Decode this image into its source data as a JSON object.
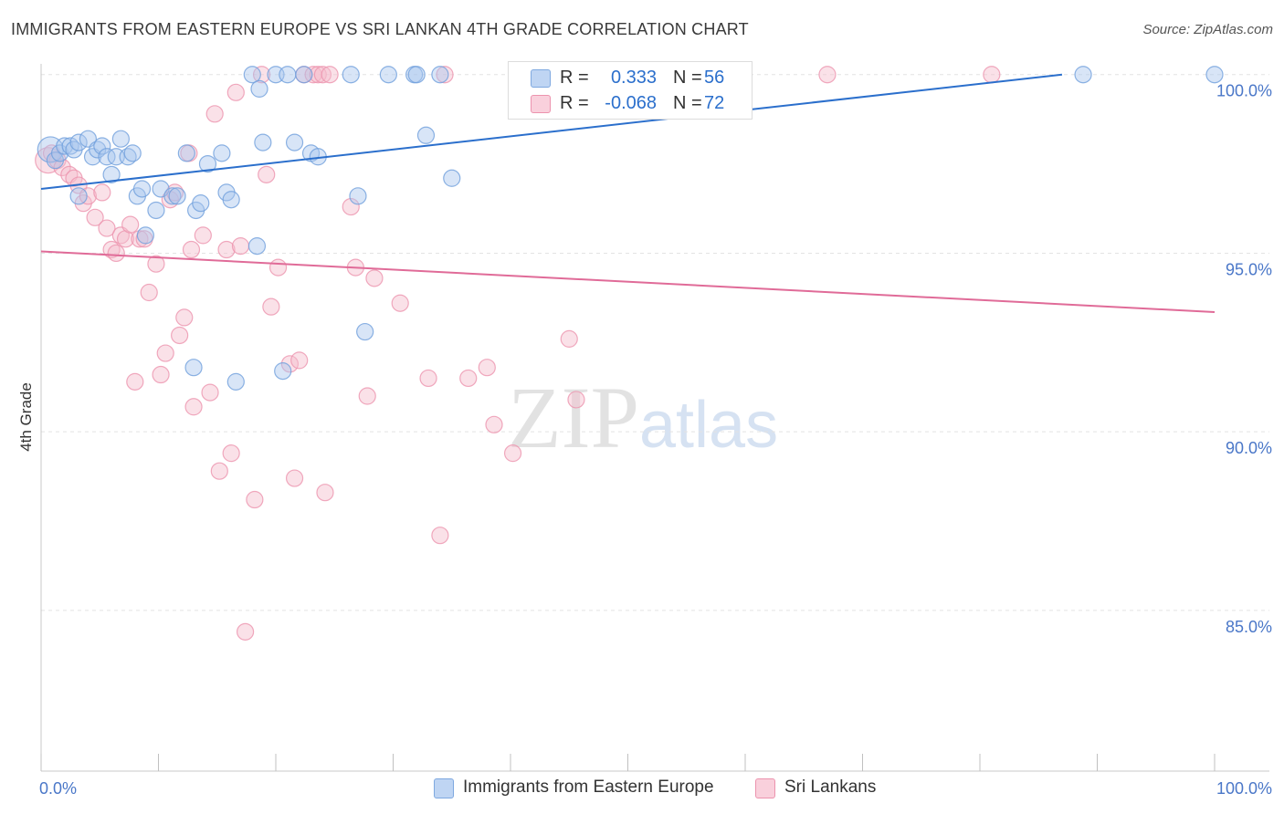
{
  "title": "IMMIGRANTS FROM EASTERN EUROPE VS SRI LANKAN 4TH GRADE CORRELATION CHART",
  "source": "Source: ZipAtlas.com",
  "watermark": {
    "zip": "ZIP",
    "atlas": "atlas"
  },
  "legend_top": {
    "rows": [
      {
        "r_label": "R =",
        "r_value": "0.333",
        "n_label": "N =",
        "n_value": "56",
        "color": "#a9c6ee"
      },
      {
        "r_label": "R =",
        "r_value": "-0.068",
        "n_label": "N =",
        "n_value": "72",
        "color": "#f5bccd"
      }
    ]
  },
  "legend_bottom": [
    {
      "label": "Immigrants from Eastern Europe",
      "color": "#a9c6ee"
    },
    {
      "label": "Sri Lankans",
      "color": "#f5bccd"
    }
  ],
  "colors": {
    "blue_fill": "#a9c6ee",
    "blue_stroke": "#6f9fdc",
    "blue_line": "#2b6fcc",
    "pink_fill": "#f5bccd",
    "pink_stroke": "#ec93ae",
    "pink_line": "#e06b98",
    "tick_label": "#4a77c8",
    "grid": "#e3e3e3"
  },
  "chart_data": {
    "type": "scatter",
    "title": "IMMIGRANTS FROM EASTERN EUROPE VS SRI LANKAN 4TH GRADE CORRELATION CHART",
    "xlabel": "",
    "ylabel": "4th Grade",
    "xlim": [
      0,
      100
    ],
    "ylim": [
      80.5,
      100.3
    ],
    "x_tick_labels": [
      "0.0%",
      "100.0%"
    ],
    "y_ticks": [
      85,
      90,
      95,
      100
    ],
    "y_tick_labels": [
      "85.0%",
      "90.0%",
      "95.0%",
      "100.0%"
    ],
    "grid": true,
    "legend_placement": "bottom",
    "series": [
      {
        "name": "Immigrants from Eastern Europe",
        "r": 0.333,
        "n": 56,
        "trend": {
          "x": [
            0,
            87
          ],
          "y": [
            96.8,
            100.0
          ]
        },
        "points": [
          {
            "x": 0.8,
            "y": 97.9,
            "big": true
          },
          {
            "x": 1.2,
            "y": 97.6
          },
          {
            "x": 1.6,
            "y": 97.8
          },
          {
            "x": 2.0,
            "y": 98.0
          },
          {
            "x": 2.5,
            "y": 98.0
          },
          {
            "x": 2.8,
            "y": 97.9
          },
          {
            "x": 3.2,
            "y": 98.1
          },
          {
            "x": 3.2,
            "y": 96.6
          },
          {
            "x": 4.0,
            "y": 98.2
          },
          {
            "x": 4.4,
            "y": 97.7
          },
          {
            "x": 4.8,
            "y": 97.9
          },
          {
            "x": 5.2,
            "y": 98.0
          },
          {
            "x": 5.6,
            "y": 97.7
          },
          {
            "x": 6.0,
            "y": 97.2
          },
          {
            "x": 6.4,
            "y": 97.7
          },
          {
            "x": 6.8,
            "y": 98.2
          },
          {
            "x": 7.4,
            "y": 97.7
          },
          {
            "x": 7.8,
            "y": 97.8
          },
          {
            "x": 8.2,
            "y": 96.6
          },
          {
            "x": 8.6,
            "y": 96.8
          },
          {
            "x": 8.9,
            "y": 95.5
          },
          {
            "x": 9.8,
            "y": 96.2
          },
          {
            "x": 10.2,
            "y": 96.8
          },
          {
            "x": 11.2,
            "y": 96.6
          },
          {
            "x": 11.6,
            "y": 96.6
          },
          {
            "x": 12.4,
            "y": 97.8
          },
          {
            "x": 13.0,
            "y": 91.8
          },
          {
            "x": 13.2,
            "y": 96.2
          },
          {
            "x": 13.6,
            "y": 96.4
          },
          {
            "x": 14.2,
            "y": 97.5
          },
          {
            "x": 15.4,
            "y": 97.8
          },
          {
            "x": 15.8,
            "y": 96.7
          },
          {
            "x": 16.2,
            "y": 96.5
          },
          {
            "x": 16.6,
            "y": 91.4
          },
          {
            "x": 18.0,
            "y": 100.0
          },
          {
            "x": 18.4,
            "y": 95.2
          },
          {
            "x": 18.6,
            "y": 99.6
          },
          {
            "x": 18.9,
            "y": 98.1
          },
          {
            "x": 20.0,
            "y": 100.0
          },
          {
            "x": 20.6,
            "y": 91.7
          },
          {
            "x": 21.0,
            "y": 100.0
          },
          {
            "x": 21.6,
            "y": 98.1
          },
          {
            "x": 22.4,
            "y": 100.0
          },
          {
            "x": 23.0,
            "y": 97.8
          },
          {
            "x": 23.6,
            "y": 97.7
          },
          {
            "x": 26.4,
            "y": 100.0
          },
          {
            "x": 27.0,
            "y": 96.6
          },
          {
            "x": 27.6,
            "y": 92.8
          },
          {
            "x": 29.6,
            "y": 100.0
          },
          {
            "x": 31.8,
            "y": 100.0
          },
          {
            "x": 32.0,
            "y": 100.0
          },
          {
            "x": 32.8,
            "y": 98.3
          },
          {
            "x": 34.0,
            "y": 100.0
          },
          {
            "x": 35.0,
            "y": 97.1
          },
          {
            "x": 88.8,
            "y": 100.0
          },
          {
            "x": 100.0,
            "y": 100.0
          }
        ]
      },
      {
        "name": "Sri Lankans",
        "r": -0.068,
        "n": 72,
        "trend": {
          "x": [
            0,
            100
          ],
          "y": [
            95.05,
            93.35
          ]
        },
        "points": [
          {
            "x": 0.6,
            "y": 97.6,
            "big": true
          },
          {
            "x": 0.9,
            "y": 97.8
          },
          {
            "x": 1.4,
            "y": 97.6
          },
          {
            "x": 1.8,
            "y": 97.4
          },
          {
            "x": 2.4,
            "y": 97.2
          },
          {
            "x": 2.8,
            "y": 97.1
          },
          {
            "x": 3.2,
            "y": 96.9
          },
          {
            "x": 3.6,
            "y": 96.4
          },
          {
            "x": 4.0,
            "y": 96.6
          },
          {
            "x": 4.6,
            "y": 96.0
          },
          {
            "x": 5.2,
            "y": 96.7
          },
          {
            "x": 5.6,
            "y": 95.7
          },
          {
            "x": 6.0,
            "y": 95.1
          },
          {
            "x": 6.4,
            "y": 95.0
          },
          {
            "x": 6.8,
            "y": 95.5
          },
          {
            "x": 7.2,
            "y": 95.4
          },
          {
            "x": 7.6,
            "y": 95.8
          },
          {
            "x": 8.0,
            "y": 91.4
          },
          {
            "x": 8.4,
            "y": 95.4
          },
          {
            "x": 8.8,
            "y": 95.4
          },
          {
            "x": 9.2,
            "y": 93.9
          },
          {
            "x": 9.8,
            "y": 94.7
          },
          {
            "x": 10.2,
            "y": 91.6
          },
          {
            "x": 10.6,
            "y": 92.2
          },
          {
            "x": 11.0,
            "y": 96.5
          },
          {
            "x": 11.4,
            "y": 96.7
          },
          {
            "x": 11.8,
            "y": 92.7
          },
          {
            "x": 12.2,
            "y": 93.2
          },
          {
            "x": 12.6,
            "y": 97.8
          },
          {
            "x": 12.8,
            "y": 95.1
          },
          {
            "x": 13.0,
            "y": 90.7
          },
          {
            "x": 13.8,
            "y": 95.5
          },
          {
            "x": 14.4,
            "y": 91.1
          },
          {
            "x": 14.8,
            "y": 98.9
          },
          {
            "x": 15.2,
            "y": 88.9
          },
          {
            "x": 15.8,
            "y": 95.1
          },
          {
            "x": 16.2,
            "y": 89.4
          },
          {
            "x": 16.6,
            "y": 99.5
          },
          {
            "x": 17.0,
            "y": 95.2
          },
          {
            "x": 17.4,
            "y": 84.4
          },
          {
            "x": 18.2,
            "y": 88.1
          },
          {
            "x": 18.8,
            "y": 100.0
          },
          {
            "x": 19.2,
            "y": 97.2
          },
          {
            "x": 19.6,
            "y": 93.5
          },
          {
            "x": 20.2,
            "y": 94.6
          },
          {
            "x": 21.2,
            "y": 91.9
          },
          {
            "x": 21.6,
            "y": 88.7
          },
          {
            "x": 22.0,
            "y": 92.0
          },
          {
            "x": 22.4,
            "y": 100.0
          },
          {
            "x": 23.2,
            "y": 100.0
          },
          {
            "x": 23.6,
            "y": 100.0
          },
          {
            "x": 24.0,
            "y": 100.0
          },
          {
            "x": 24.2,
            "y": 88.3
          },
          {
            "x": 24.6,
            "y": 100.0
          },
          {
            "x": 26.4,
            "y": 96.3
          },
          {
            "x": 26.8,
            "y": 94.6
          },
          {
            "x": 27.8,
            "y": 91.0
          },
          {
            "x": 28.4,
            "y": 94.3
          },
          {
            "x": 30.6,
            "y": 93.6
          },
          {
            "x": 33.0,
            "y": 91.5
          },
          {
            "x": 34.0,
            "y": 87.1
          },
          {
            "x": 34.4,
            "y": 100.0
          },
          {
            "x": 36.4,
            "y": 91.5
          },
          {
            "x": 38.0,
            "y": 91.8
          },
          {
            "x": 38.6,
            "y": 90.2
          },
          {
            "x": 40.2,
            "y": 89.4
          },
          {
            "x": 41.4,
            "y": 100.0
          },
          {
            "x": 45.0,
            "y": 92.6
          },
          {
            "x": 45.6,
            "y": 90.9
          },
          {
            "x": 48.4,
            "y": 100.0
          },
          {
            "x": 67.0,
            "y": 100.0
          },
          {
            "x": 81.0,
            "y": 100.0
          }
        ]
      }
    ]
  }
}
